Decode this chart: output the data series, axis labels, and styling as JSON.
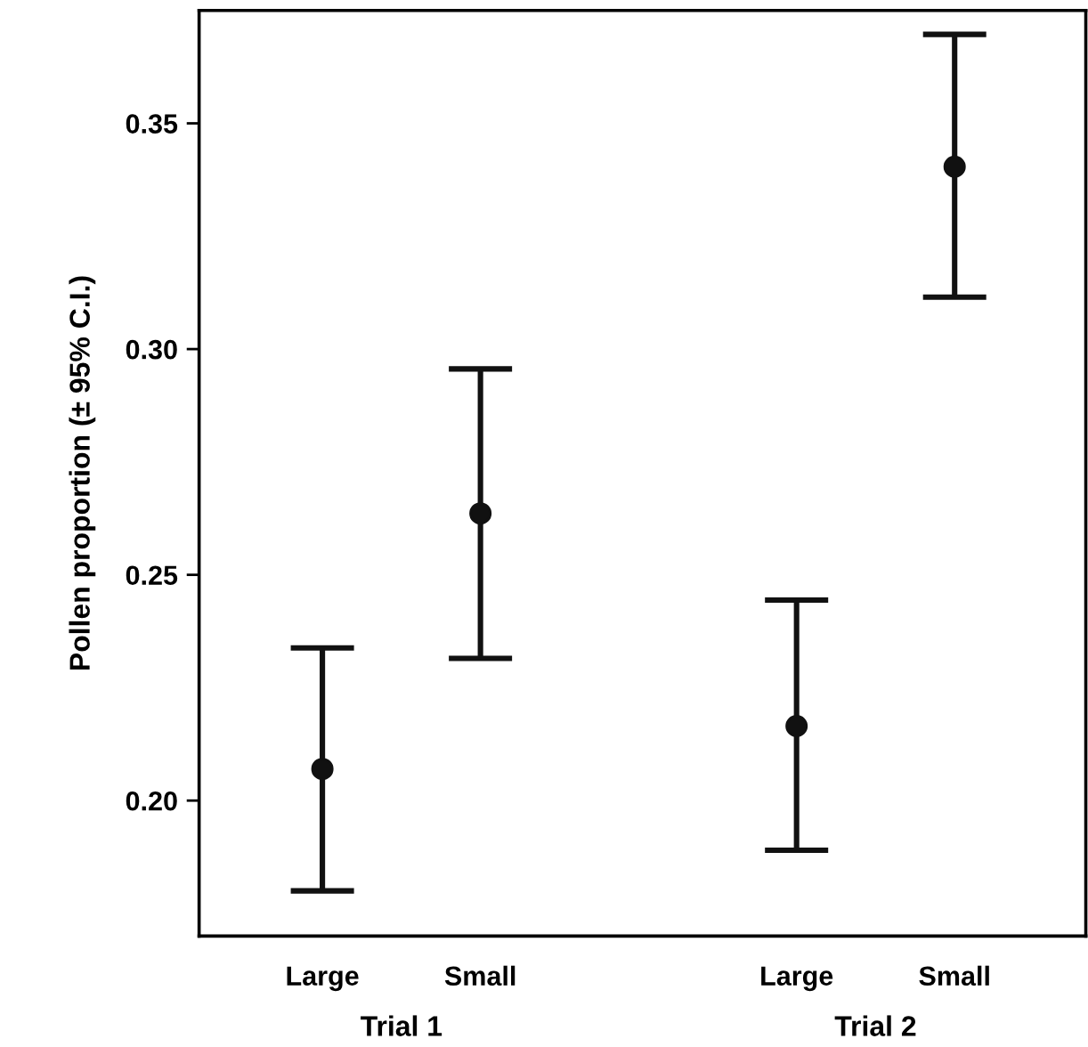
{
  "chart_data": {
    "type": "scatter",
    "ylabel": "Pollen proportion (± 95% C.I.)",
    "categories": [
      "Large",
      "Small",
      null,
      "Large",
      "Small"
    ],
    "annotations": [
      "Trial 1",
      "Trial 2"
    ],
    "series": [
      {
        "color": "#111111",
        "values": [
          0.207,
          0.2636,
          null,
          0.2165,
          0.3404
        ],
        "errors": [
          [
            0.18,
            0.2338
          ],
          [
            0.2315,
            0.2956
          ],
          null,
          [
            0.189,
            0.2444
          ],
          [
            0.3115,
            0.3697
          ]
        ]
      }
    ],
    "ylim": [
      0.17,
      0.375
    ],
    "yticks": [
      {
        "value": 0.2,
        "label": "0.20"
      },
      {
        "value": 0.25,
        "label": "0.25"
      },
      {
        "value": 0.3,
        "label": "0.30"
      },
      {
        "value": 0.35,
        "label": "0.35"
      }
    ],
    "marker": "circle",
    "grid": false
  }
}
